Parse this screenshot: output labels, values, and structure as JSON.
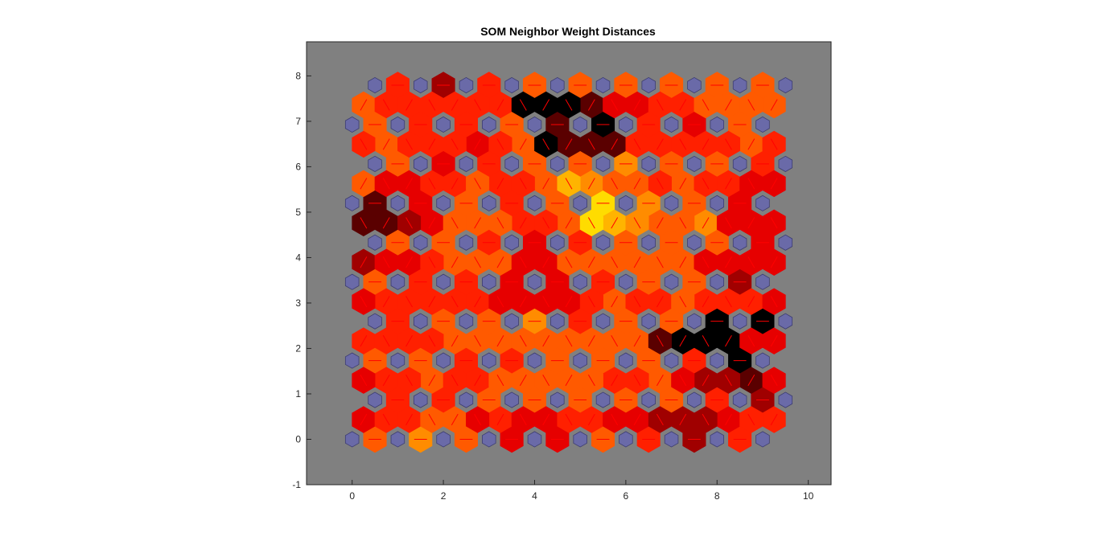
{
  "chart_data": {
    "type": "heatmap",
    "title": "SOM Neighbor Weight Distances",
    "xlabel": "",
    "ylabel": "",
    "xlim": [
      -1,
      10.5
    ],
    "ylim": [
      -1,
      8.75
    ],
    "x_ticks": [
      "0",
      "2",
      "4",
      "6",
      "8",
      "10"
    ],
    "y_ticks": [
      "-1",
      "0",
      "1",
      "2",
      "3",
      "4",
      "5",
      "6",
      "7",
      "8"
    ],
    "x_tick_values": [
      0,
      2,
      4,
      6,
      8,
      10
    ],
    "y_tick_values": [
      -1,
      0,
      1,
      2,
      3,
      4,
      5,
      6,
      7,
      8
    ],
    "grid_dimensions": [
      10,
      10
    ],
    "topology": "hexagonal",
    "neuron_row_spacing": 0.866,
    "neuron_row_offset": 0.5,
    "neuron_color": "#6a6aa8",
    "background_color": "#808080",
    "line_color": "#ff0000",
    "colormap": [
      "#000000",
      "#5a0000",
      "#a00000",
      "#e60000",
      "#ff2000",
      "#ff5a00",
      "#ff8c00",
      "#ffb400",
      "#ffdc00",
      "#ffff00"
    ],
    "distances_horizontal": [
      [
        0.6,
        0.65,
        0.6,
        0.35,
        0.3,
        0.55,
        0.4,
        0.2,
        0.4
      ],
      [
        0.4,
        0.4,
        0.5,
        0.55,
        0.5,
        0.5,
        0.5,
        0.4,
        0.2
      ],
      [
        0.5,
        0.5,
        0.45,
        0.45,
        0.5,
        0.55,
        0.6,
        0.45,
        0.05
      ],
      [
        0.45,
        0.5,
        0.5,
        0.7,
        0.45,
        0.6,
        0.6,
        0.05,
        0.0
      ],
      [
        0.55,
        0.4,
        0.45,
        0.35,
        0.3,
        0.4,
        0.5,
        0.6,
        0.25
      ],
      [
        0.55,
        0.55,
        0.45,
        0.35,
        0.45,
        0.6,
        0.55,
        0.5,
        0.3
      ],
      [
        0.1,
        0.3,
        0.6,
        0.4,
        0.5,
        0.9,
        0.7,
        0.5,
        0.3
      ],
      [
        0.5,
        0.3,
        0.45,
        0.5,
        0.5,
        0.7,
        0.6,
        0.5,
        0.45
      ],
      [
        0.5,
        0.45,
        0.4,
        0.5,
        0.1,
        0.05,
        0.4,
        0.35,
        0.55
      ],
      [
        0.4,
        0.25,
        0.45,
        0.55,
        0.5,
        0.6,
        0.5,
        0.5,
        0.55
      ]
    ],
    "distances_diag_right": [
      [
        0.35,
        0.4,
        0.55,
        0.4,
        0.35,
        0.4,
        0.3,
        0.2,
        0.3,
        0.45
      ],
      [
        0.4,
        0.5,
        0.45,
        0.5,
        0.55,
        0.45,
        0.5,
        0.25,
        0.15,
        0.35
      ],
      [
        0.45,
        0.4,
        0.5,
        0.5,
        0.6,
        0.55,
        0.5,
        0.05,
        0.05,
        0.3
      ],
      [
        0.4,
        0.45,
        0.4,
        0.35,
        0.3,
        0.5,
        0.4,
        0.45,
        0.4,
        0.3
      ],
      [
        0.2,
        0.35,
        0.5,
        0.55,
        0.35,
        0.5,
        0.55,
        0.5,
        0.35,
        0.3
      ],
      [
        0.15,
        0.3,
        0.5,
        0.45,
        0.5,
        0.75,
        0.6,
        0.65,
        0.3,
        0.3
      ],
      [
        0.5,
        0.3,
        0.4,
        0.45,
        0.5,
        0.7,
        0.55,
        0.5,
        0.45,
        0.3
      ],
      [
        0.5,
        0.45,
        0.35,
        0.5,
        0.1,
        0.15,
        0.45,
        0.4,
        0.5,
        0.5
      ],
      [
        0.5,
        0.4,
        0.45,
        0.45,
        0.05,
        0.1,
        0.35,
        0.4,
        0.5,
        0.5
      ]
    ],
    "distances_diag_left": [
      [
        0.4,
        0.45,
        0.5,
        0.35,
        0.3,
        0.4,
        0.35,
        0.2,
        0.25,
        0.4
      ],
      [
        0.35,
        0.45,
        0.45,
        0.55,
        0.6,
        0.5,
        0.45,
        0.3,
        0.2,
        0.3
      ],
      [
        0.5,
        0.45,
        0.45,
        0.5,
        0.55,
        0.6,
        0.55,
        0.1,
        0.05,
        0.3
      ],
      [
        0.35,
        0.4,
        0.45,
        0.35,
        0.35,
        0.45,
        0.45,
        0.5,
        0.45,
        0.35
      ],
      [
        0.15,
        0.3,
        0.45,
        0.5,
        0.3,
        0.55,
        0.5,
        0.5,
        0.3,
        0.3
      ],
      [
        0.1,
        0.25,
        0.55,
        0.5,
        0.45,
        0.85,
        0.65,
        0.6,
        0.35,
        0.35
      ],
      [
        0.45,
        0.35,
        0.45,
        0.5,
        0.45,
        0.8,
        0.6,
        0.45,
        0.4,
        0.35
      ],
      [
        0.45,
        0.45,
        0.4,
        0.45,
        0.05,
        0.1,
        0.4,
        0.4,
        0.45,
        0.45
      ],
      [
        0.45,
        0.4,
        0.4,
        0.4,
        0.05,
        0.05,
        0.35,
        0.45,
        0.5,
        0.5
      ]
    ]
  }
}
